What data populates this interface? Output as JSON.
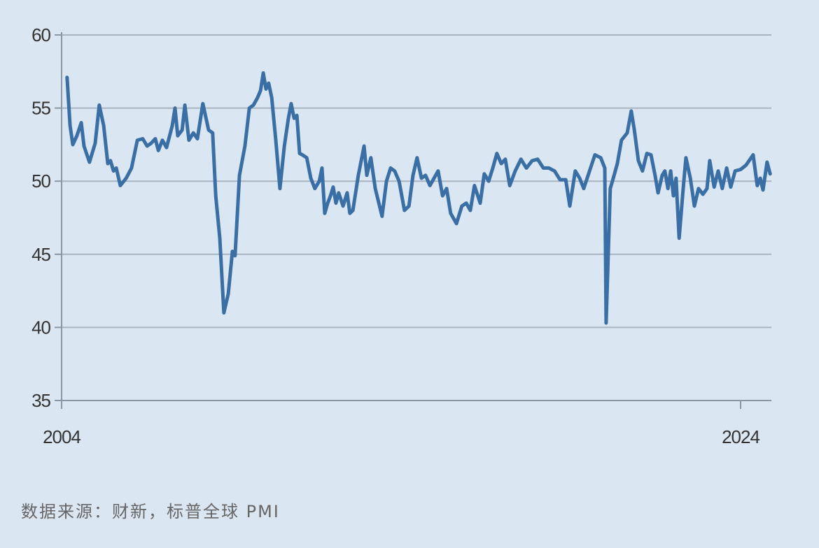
{
  "chart_data": {
    "type": "line",
    "title": "",
    "xlabel": "",
    "ylabel": "",
    "ylim": [
      35,
      60
    ],
    "xlim": [
      2004,
      2024.9
    ],
    "yticks": [
      "35",
      "40",
      "45",
      "50",
      "55",
      "60"
    ],
    "xticks": [
      "2004",
      "2024"
    ],
    "grid": "horizontal",
    "line_color": "#3a6fa6",
    "background_color": "#dbe6f3",
    "series": [
      {
        "points": [
          [
            2004.16,
            57.1
          ],
          [
            2004.25,
            53.8
          ],
          [
            2004.33,
            52.5
          ],
          [
            2004.45,
            53.1
          ],
          [
            2004.58,
            54.0
          ],
          [
            2004.66,
            52.4
          ],
          [
            2004.82,
            51.3
          ],
          [
            2004.99,
            52.6
          ],
          [
            2005.11,
            55.2
          ],
          [
            2005.24,
            53.8
          ],
          [
            2005.36,
            51.2
          ],
          [
            2005.44,
            51.4
          ],
          [
            2005.53,
            50.7
          ],
          [
            2005.61,
            50.9
          ],
          [
            2005.73,
            49.7
          ],
          [
            2005.9,
            50.2
          ],
          [
            2006.06,
            50.9
          ],
          [
            2006.23,
            52.8
          ],
          [
            2006.39,
            52.9
          ],
          [
            2006.52,
            52.4
          ],
          [
            2006.64,
            52.6
          ],
          [
            2006.76,
            52.9
          ],
          [
            2006.85,
            52.1
          ],
          [
            2006.97,
            52.8
          ],
          [
            2007.09,
            52.3
          ],
          [
            2007.26,
            53.8
          ],
          [
            2007.34,
            55.0
          ],
          [
            2007.42,
            53.1
          ],
          [
            2007.55,
            53.5
          ],
          [
            2007.63,
            55.2
          ],
          [
            2007.75,
            52.8
          ],
          [
            2007.88,
            53.3
          ],
          [
            2008.0,
            52.9
          ],
          [
            2008.16,
            55.3
          ],
          [
            2008.33,
            53.5
          ],
          [
            2008.45,
            53.3
          ],
          [
            2008.54,
            49.0
          ],
          [
            2008.66,
            46.1
          ],
          [
            2008.78,
            41.0
          ],
          [
            2008.91,
            42.3
          ],
          [
            2009.03,
            45.2
          ],
          [
            2009.11,
            44.9
          ],
          [
            2009.24,
            50.4
          ],
          [
            2009.4,
            52.4
          ],
          [
            2009.53,
            55.0
          ],
          [
            2009.65,
            55.2
          ],
          [
            2009.77,
            55.7
          ],
          [
            2009.86,
            56.2
          ],
          [
            2009.94,
            57.4
          ],
          [
            2010.02,
            56.3
          ],
          [
            2010.1,
            56.7
          ],
          [
            2010.19,
            55.7
          ],
          [
            2010.31,
            52.8
          ],
          [
            2010.43,
            49.5
          ],
          [
            2010.56,
            52.4
          ],
          [
            2010.68,
            54.3
          ],
          [
            2010.76,
            55.3
          ],
          [
            2010.85,
            54.3
          ],
          [
            2010.93,
            54.5
          ],
          [
            2011.01,
            51.9
          ],
          [
            2011.09,
            51.8
          ],
          [
            2011.22,
            51.6
          ],
          [
            2011.34,
            50.2
          ],
          [
            2011.46,
            49.5
          ],
          [
            2011.59,
            50.0
          ],
          [
            2011.67,
            50.9
          ],
          [
            2011.75,
            47.8
          ],
          [
            2011.84,
            48.5
          ],
          [
            2011.92,
            49.0
          ],
          [
            2012.0,
            49.6
          ],
          [
            2012.08,
            48.5
          ],
          [
            2012.16,
            49.2
          ],
          [
            2012.29,
            48.3
          ],
          [
            2012.41,
            49.2
          ],
          [
            2012.49,
            47.8
          ],
          [
            2012.58,
            48.0
          ],
          [
            2012.74,
            50.4
          ],
          [
            2012.91,
            52.4
          ],
          [
            2012.99,
            50.4
          ],
          [
            2013.11,
            51.6
          ],
          [
            2013.24,
            49.5
          ],
          [
            2013.44,
            47.6
          ],
          [
            2013.57,
            50.0
          ],
          [
            2013.69,
            50.9
          ],
          [
            2013.81,
            50.7
          ],
          [
            2013.94,
            50.0
          ],
          [
            2014.1,
            48.0
          ],
          [
            2014.23,
            48.3
          ],
          [
            2014.35,
            50.4
          ],
          [
            2014.47,
            51.6
          ],
          [
            2014.6,
            50.2
          ],
          [
            2014.72,
            50.4
          ],
          [
            2014.85,
            49.7
          ],
          [
            2014.97,
            50.2
          ],
          [
            2015.09,
            50.7
          ],
          [
            2015.22,
            49.0
          ],
          [
            2015.34,
            49.5
          ],
          [
            2015.46,
            47.8
          ],
          [
            2015.63,
            47.1
          ],
          [
            2015.79,
            48.3
          ],
          [
            2015.92,
            48.5
          ],
          [
            2016.04,
            48.0
          ],
          [
            2016.16,
            49.7
          ],
          [
            2016.33,
            48.5
          ],
          [
            2016.45,
            50.5
          ],
          [
            2016.58,
            50.0
          ],
          [
            2016.7,
            50.9
          ],
          [
            2016.82,
            51.9
          ],
          [
            2016.95,
            51.2
          ],
          [
            2017.07,
            51.5
          ],
          [
            2017.2,
            49.7
          ],
          [
            2017.36,
            50.7
          ],
          [
            2017.53,
            51.5
          ],
          [
            2017.69,
            50.9
          ],
          [
            2017.86,
            51.4
          ],
          [
            2018.02,
            51.5
          ],
          [
            2018.19,
            50.9
          ],
          [
            2018.35,
            50.9
          ],
          [
            2018.52,
            50.7
          ],
          [
            2018.68,
            50.1
          ],
          [
            2018.85,
            50.1
          ],
          [
            2018.97,
            48.3
          ],
          [
            2019.13,
            50.7
          ],
          [
            2019.26,
            50.2
          ],
          [
            2019.38,
            49.5
          ],
          [
            2019.55,
            50.7
          ],
          [
            2019.71,
            51.8
          ],
          [
            2019.88,
            51.6
          ],
          [
            2020.0,
            50.9
          ],
          [
            2020.04,
            40.3
          ],
          [
            2020.16,
            49.5
          ],
          [
            2020.25,
            50.2
          ],
          [
            2020.37,
            51.2
          ],
          [
            2020.49,
            52.8
          ],
          [
            2020.66,
            53.3
          ],
          [
            2020.78,
            54.8
          ],
          [
            2020.87,
            53.5
          ],
          [
            2020.99,
            51.4
          ],
          [
            2021.11,
            50.7
          ],
          [
            2021.24,
            51.9
          ],
          [
            2021.36,
            51.8
          ],
          [
            2021.48,
            50.4
          ],
          [
            2021.57,
            49.2
          ],
          [
            2021.69,
            50.4
          ],
          [
            2021.77,
            50.7
          ],
          [
            2021.86,
            49.5
          ],
          [
            2021.94,
            50.7
          ],
          [
            2022.02,
            49.0
          ],
          [
            2022.1,
            50.2
          ],
          [
            2022.19,
            46.1
          ],
          [
            2022.31,
            49.5
          ],
          [
            2022.39,
            51.6
          ],
          [
            2022.52,
            50.2
          ],
          [
            2022.64,
            48.3
          ],
          [
            2022.76,
            49.5
          ],
          [
            2022.89,
            49.1
          ],
          [
            2023.01,
            49.5
          ],
          [
            2023.09,
            51.4
          ],
          [
            2023.22,
            49.6
          ],
          [
            2023.34,
            50.7
          ],
          [
            2023.46,
            49.5
          ],
          [
            2023.59,
            50.9
          ],
          [
            2023.71,
            49.6
          ],
          [
            2023.84,
            50.7
          ],
          [
            2024.0,
            50.8
          ],
          [
            2024.16,
            51.1
          ],
          [
            2024.37,
            51.8
          ],
          [
            2024.49,
            49.7
          ],
          [
            2024.58,
            50.2
          ],
          [
            2024.66,
            49.4
          ],
          [
            2024.78,
            51.3
          ],
          [
            2024.87,
            50.5
          ]
        ]
      }
    ]
  },
  "source_note": "数据来源：财新，标普全球 PMI"
}
